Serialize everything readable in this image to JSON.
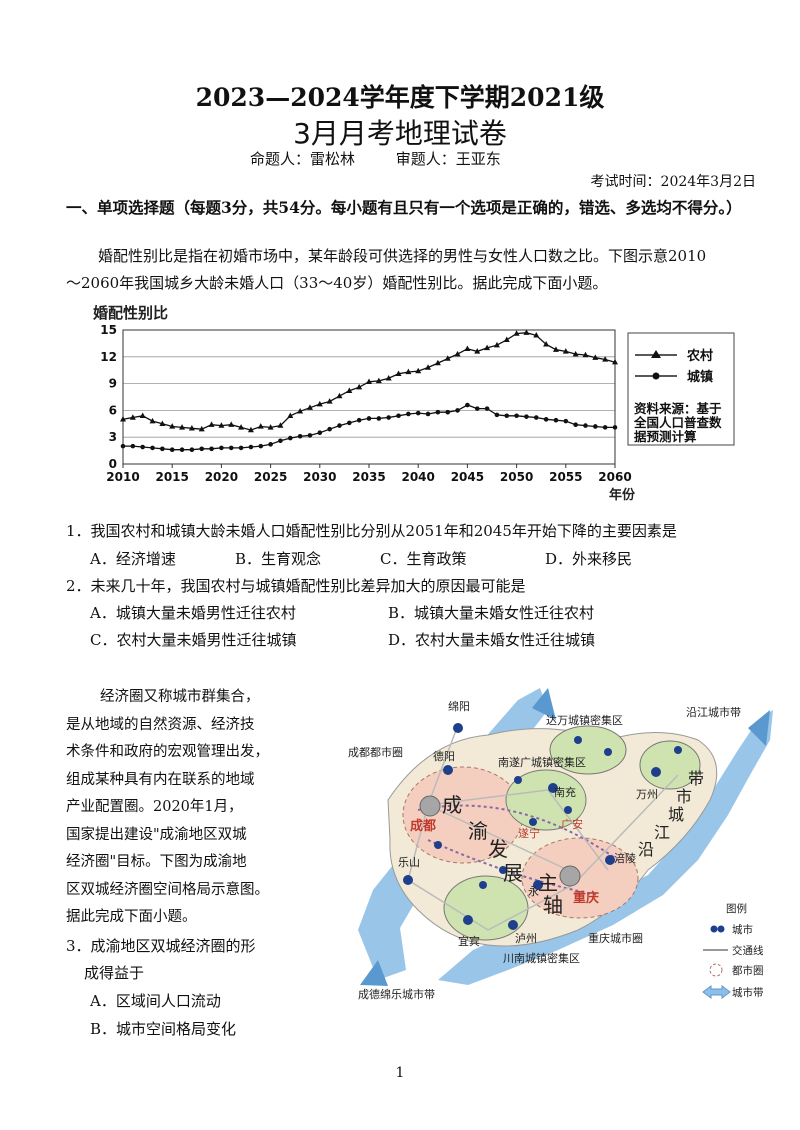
{
  "header": {
    "title_line1": "2023—2024学年度下学期2021级",
    "title_line2": "3月月考地理试卷",
    "author": "命题人：雷松林",
    "reviewer": "审题人：王亚东",
    "exam_time": "考试时间：2024年3月2日"
  },
  "section1": {
    "heading": "一、单项选择题（每题3分，共54分。每小题有且只有一个选项是正确的，错选、多选均不得分。）",
    "intro_line1": "婚配性别比是指在初婚市场中，某年龄段可供选择的男性与女性人口数之比。下图示意2010",
    "intro_line2": "～2060年我国城乡大龄未婚人口（33～40岁）婚配性别比。据此完成下面小题。"
  },
  "chart_data": {
    "type": "line",
    "title": "婚配性别比",
    "xlabel": "年份",
    "ylabel": "",
    "xlim": [
      2010,
      2060
    ],
    "ylim": [
      0,
      15
    ],
    "x_ticks": [
      2010,
      2015,
      2020,
      2025,
      2030,
      2035,
      2040,
      2045,
      2050,
      2055,
      2060
    ],
    "y_ticks": [
      0,
      3,
      6,
      9,
      12,
      15
    ],
    "grid": "horizontal",
    "legend_position": "right",
    "source_note": [
      "资料来源：基于",
      "全国人口普查数",
      "据预测计算"
    ],
    "series": [
      {
        "name": "农村",
        "marker": "triangle",
        "points": [
          [
            2010,
            5.0
          ],
          [
            2011,
            5.2
          ],
          [
            2012,
            5.4
          ],
          [
            2013,
            4.8
          ],
          [
            2014,
            4.5
          ],
          [
            2015,
            4.2
          ],
          [
            2016,
            4.1
          ],
          [
            2017,
            4.0
          ],
          [
            2018,
            3.9
          ],
          [
            2019,
            4.4
          ],
          [
            2020,
            4.3
          ],
          [
            2021,
            4.4
          ],
          [
            2022,
            4.1
          ],
          [
            2023,
            3.8
          ],
          [
            2024,
            4.2
          ],
          [
            2025,
            4.1
          ],
          [
            2026,
            4.3
          ],
          [
            2027,
            5.4
          ],
          [
            2028,
            5.9
          ],
          [
            2029,
            6.3
          ],
          [
            2030,
            6.7
          ],
          [
            2031,
            7.0
          ],
          [
            2032,
            7.6
          ],
          [
            2033,
            8.2
          ],
          [
            2034,
            8.6
          ],
          [
            2035,
            9.2
          ],
          [
            2036,
            9.3
          ],
          [
            2037,
            9.6
          ],
          [
            2038,
            10.1
          ],
          [
            2039,
            10.3
          ],
          [
            2040,
            10.4
          ],
          [
            2041,
            10.8
          ],
          [
            2042,
            11.3
          ],
          [
            2043,
            11.8
          ],
          [
            2044,
            12.3
          ],
          [
            2045,
            12.9
          ],
          [
            2046,
            12.6
          ],
          [
            2047,
            13.0
          ],
          [
            2048,
            13.3
          ],
          [
            2049,
            13.9
          ],
          [
            2050,
            14.6
          ],
          [
            2051,
            14.7
          ],
          [
            2052,
            14.4
          ],
          [
            2053,
            13.4
          ],
          [
            2054,
            12.8
          ],
          [
            2055,
            12.6
          ],
          [
            2056,
            12.3
          ],
          [
            2057,
            12.2
          ],
          [
            2058,
            11.9
          ],
          [
            2059,
            11.7
          ],
          [
            2060,
            11.4
          ]
        ]
      },
      {
        "name": "城镇",
        "marker": "circle",
        "points": [
          [
            2010,
            2.0
          ],
          [
            2011,
            2.0
          ],
          [
            2012,
            1.9
          ],
          [
            2013,
            1.8
          ],
          [
            2014,
            1.7
          ],
          [
            2015,
            1.6
          ],
          [
            2016,
            1.6
          ],
          [
            2017,
            1.6
          ],
          [
            2018,
            1.7
          ],
          [
            2019,
            1.7
          ],
          [
            2020,
            1.8
          ],
          [
            2021,
            1.8
          ],
          [
            2022,
            1.8
          ],
          [
            2023,
            1.9
          ],
          [
            2024,
            2.0
          ],
          [
            2025,
            2.2
          ],
          [
            2026,
            2.6
          ],
          [
            2027,
            2.9
          ],
          [
            2028,
            3.1
          ],
          [
            2029,
            3.2
          ],
          [
            2030,
            3.5
          ],
          [
            2031,
            3.9
          ],
          [
            2032,
            4.3
          ],
          [
            2033,
            4.6
          ],
          [
            2034,
            4.9
          ],
          [
            2035,
            5.1
          ],
          [
            2036,
            5.1
          ],
          [
            2037,
            5.2
          ],
          [
            2038,
            5.4
          ],
          [
            2039,
            5.6
          ],
          [
            2040,
            5.7
          ],
          [
            2041,
            5.6
          ],
          [
            2042,
            5.8
          ],
          [
            2043,
            5.8
          ],
          [
            2044,
            6.0
          ],
          [
            2045,
            6.6
          ],
          [
            2046,
            6.2
          ],
          [
            2047,
            6.2
          ],
          [
            2048,
            5.5
          ],
          [
            2049,
            5.4
          ],
          [
            2050,
            5.4
          ],
          [
            2051,
            5.3
          ],
          [
            2052,
            5.2
          ],
          [
            2053,
            5.0
          ],
          [
            2054,
            4.9
          ],
          [
            2055,
            4.8
          ],
          [
            2056,
            4.4
          ],
          [
            2057,
            4.3
          ],
          [
            2058,
            4.2
          ],
          [
            2059,
            4.1
          ],
          [
            2060,
            4.1
          ]
        ]
      }
    ]
  },
  "questions": {
    "q1": {
      "stem": "1．我国农村和城镇大龄未婚人口婚配性别比分别从2051年和2045年开始下降的主要因素是",
      "options": [
        "A．经济增速",
        "B．生育观念",
        "C．生育政策",
        "D．外来移民"
      ]
    },
    "q2": {
      "stem": "2．未来几十年，我国农村与城镇婚配性别比差异加大的原因最可能是",
      "options": [
        "A．城镇大量未婚男性迁往农村",
        "B．城镇大量未婚女性迁往农村",
        "C．农村大量未婚男性迁往城镇",
        "D．农村大量未婚女性迁往城镇"
      ]
    },
    "passage2": [
      "经济圈又称城市群集合，",
      "是从地域的自然资源、经济技",
      "术条件和政府的宏观管理出发，",
      "组成某种具有内在联系的地域",
      "产业配置圈。2020年1月，",
      "国家提出建设\"成渝地区双城",
      "经济圈\"目标。下图为成渝地",
      "区双城经济圈空间格局示意图。",
      "据此完成下面小题。"
    ],
    "q3": {
      "stem_line1": "3．成渝地区双城经济圈的形",
      "stem_line2": "成得益于",
      "options": [
        "A．区域间人口流动",
        "B．城市空间格局变化"
      ]
    }
  },
  "map": {
    "labels": {
      "mianyang": "绵阳",
      "deyang": "德阳",
      "chengdu_circle": "成都都市圈",
      "nansui": "南遂广城镇密集区",
      "dawan": "达万城镇密集区",
      "yanjiang": "沿江城市带",
      "wanzhou": "万州",
      "nanchong": "南充",
      "guangan": "广安",
      "suining": "遂宁",
      "chengdu": "成都",
      "chongqing": "重庆",
      "fuling": "涪陵",
      "yongchuan": "永",
      "leshan": "乐山",
      "yibin": "宜宾",
      "luzhou": "泸州",
      "chongqing_circle": "重庆城市圈",
      "chuannan": "川南城镇密集区",
      "chengdele": "成德绵乐城市带",
      "axis_chars": [
        "成",
        "渝",
        "发",
        "展",
        "主",
        "轴"
      ],
      "yanjiang_chars": [
        "沿",
        "江",
        "城",
        "市",
        "带"
      ]
    },
    "legend": {
      "title": "图例",
      "city": "城市",
      "traffic": "交通线",
      "metro": "都市圈",
      "belt": "城市带"
    }
  },
  "page_number": "1"
}
